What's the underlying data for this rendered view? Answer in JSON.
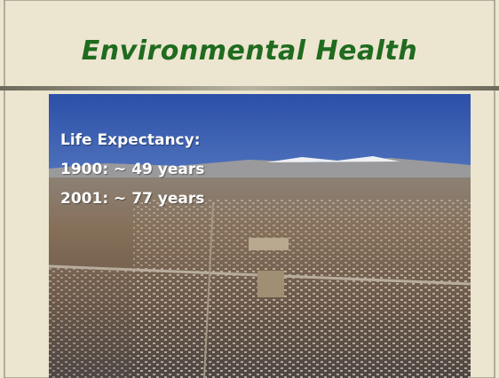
{
  "title": "Environmental Health",
  "body": {
    "lines": [
      "Life Expectancy:",
      "1900: ~ 49 years",
      "2001: ~ 77 years"
    ]
  }
}
